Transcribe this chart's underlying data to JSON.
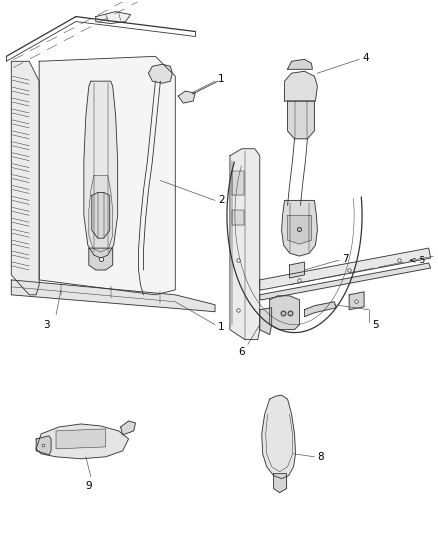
{
  "background_color": "#ffffff",
  "line_color": "#333333",
  "label_color": "#000000",
  "figsize": [
    4.38,
    5.33
  ],
  "dpi": 100,
  "lw": 0.6,
  "lw_thin": 0.35,
  "lw_thick": 0.9,
  "label_fontsize": 7.5,
  "callout_lw": 0.5
}
